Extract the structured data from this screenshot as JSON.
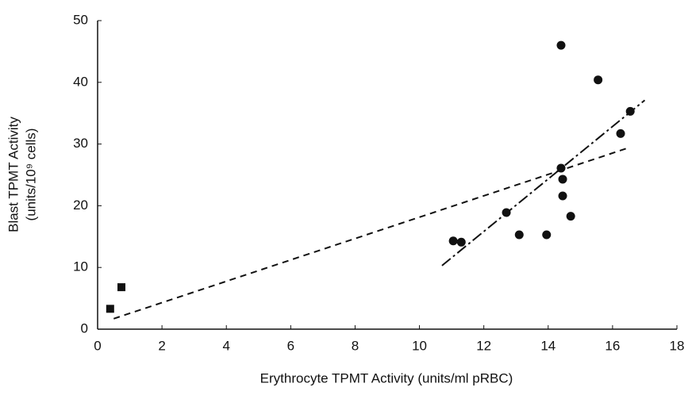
{
  "chart_data": {
    "type": "scatter",
    "xlabel": "Erythrocyte TPMT Activity (units/ml pRBC)",
    "ylabel": [
      "Blast TPMT Activity",
      "(units/10⁹ cells)"
    ],
    "xlim": [
      0,
      18
    ],
    "xticks": [
      0,
      2,
      4,
      6,
      8,
      10,
      12,
      14,
      16,
      18
    ],
    "ylim": [
      0,
      50
    ],
    "yticks": [
      0,
      10,
      20,
      30,
      40,
      50
    ],
    "color": "#111111",
    "series": [
      {
        "marker": "square",
        "x": [
          0.39,
          0.74
        ],
        "values": [
          3.3,
          6.8
        ]
      },
      {
        "marker": "circle",
        "x": [
          11.05,
          11.3,
          12.7,
          13.1,
          13.95,
          14.4,
          14.4,
          14.45,
          14.45,
          14.7,
          15.55,
          16.25,
          16.55
        ],
        "values": [
          14.3,
          14.1,
          18.9,
          15.3,
          15.3,
          46,
          26.1,
          24.3,
          21.6,
          18.3,
          40.4,
          31.7,
          35.3
        ]
      }
    ],
    "lines": [
      {
        "style": "dashed",
        "x": [
          0.5,
          16.5
        ],
        "values": [
          1.7,
          29.4
        ]
      },
      {
        "style": "dashdot",
        "x": [
          10.7,
          17.0
        ],
        "values": [
          10.3,
          37.1
        ]
      }
    ]
  }
}
